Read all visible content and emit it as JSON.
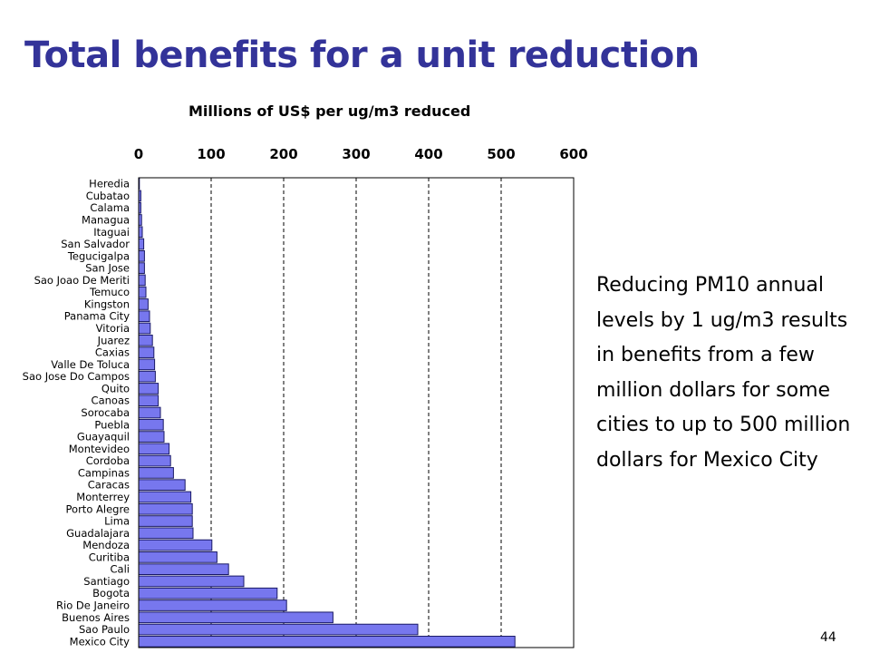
{
  "slide": {
    "title": "Total benefits for a unit reduction",
    "text": "Reducing PM10 annual levels by 1 ug/m3 results in benefits from a few million dollars for some cities to up to 500 million dollars for Mexico City",
    "page_number": "44"
  },
  "colors": {
    "title": "#333399",
    "bar_fill": "#7777ee",
    "bar_stroke": "#1a1a66"
  },
  "chart_data": {
    "type": "bar",
    "orientation": "horizontal",
    "title": "Millions of US$ per ug/m3 reduced",
    "xlim": [
      0,
      600
    ],
    "xticks": [
      0,
      100,
      200,
      300,
      400,
      500,
      600
    ],
    "x_axis_position": "top",
    "grid": "vertical dashed",
    "categories": [
      "Heredia",
      "Cubatao",
      "Calama",
      "Managua",
      "Itaguai",
      "San Salvador",
      "Tegucigalpa",
      "San Jose",
      "Sao Joao De Meriti",
      "Temuco",
      "Kingston",
      "Panama City",
      "Vitoria",
      "Juarez",
      "Caxias",
      "Valle De Toluca",
      "Sao Jose Do Campos",
      "Quito",
      "Canoas",
      "Sorocaba",
      "Puebla",
      "Guayaquil",
      "Montevideo",
      "Cordoba",
      "Campinas",
      "Caracas",
      "Monterrey",
      "Porto Alegre",
      "Lima",
      "Guadalajara",
      "Mendoza",
      "Curitiba",
      "Cali",
      "Santiago",
      "Bogota",
      "Rio De Janeiro",
      "Buenos Aires",
      "Sao Paulo",
      "Mexico City"
    ],
    "values": [
      1,
      3,
      3,
      4,
      5,
      7,
      8,
      8,
      9,
      10,
      13,
      15,
      16,
      19,
      21,
      22,
      23,
      27,
      27,
      30,
      34,
      35,
      42,
      44,
      48,
      64,
      72,
      74,
      74,
      75,
      101,
      108,
      124,
      145,
      191,
      204,
      268,
      385,
      519
    ]
  }
}
